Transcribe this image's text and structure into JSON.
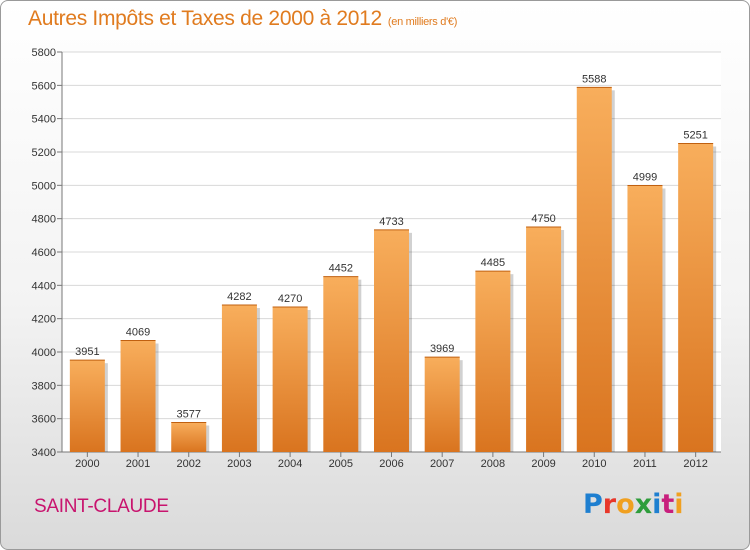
{
  "header": {
    "title": "Autres Impôts et Taxes de 2000 à 2012",
    "unit": "(en milliers d'€)"
  },
  "footer": {
    "commune": "SAINT-CLAUDE",
    "brand": {
      "letters": [
        {
          "ch": "P",
          "color": "#1e7fd0"
        },
        {
          "ch": "r",
          "color": "#e8372a"
        },
        {
          "ch": "o",
          "color": "#f0a020"
        },
        {
          "ch": "x",
          "color": "#2e9d3b"
        },
        {
          "ch": "i",
          "color": "#1e7fd0"
        },
        {
          "ch": "t",
          "color": "#c81f7d"
        },
        {
          "ch": "i",
          "color": "#f0a020"
        }
      ]
    }
  },
  "colors": {
    "title": "#e07b1f",
    "commune": "#c8146e",
    "bar_top": "#f8ae5c",
    "bar_bottom": "#d9741f",
    "grid": "#d8d8d8"
  },
  "chart_data": {
    "type": "bar",
    "categories": [
      "2000",
      "2001",
      "2002",
      "2003",
      "2004",
      "2005",
      "2006",
      "2007",
      "2008",
      "2009",
      "2010",
      "2011",
      "2012"
    ],
    "values": [
      3951,
      4069,
      3577,
      4282,
      4270,
      4452,
      4733,
      3969,
      4485,
      4750,
      5588,
      4999,
      5251
    ],
    "ylim": [
      3400,
      5800
    ],
    "yticks": [
      3400,
      3600,
      3800,
      4000,
      4200,
      4400,
      4600,
      4800,
      5000,
      5200,
      5400,
      5600,
      5800
    ],
    "grid": true,
    "data_labels": true
  }
}
